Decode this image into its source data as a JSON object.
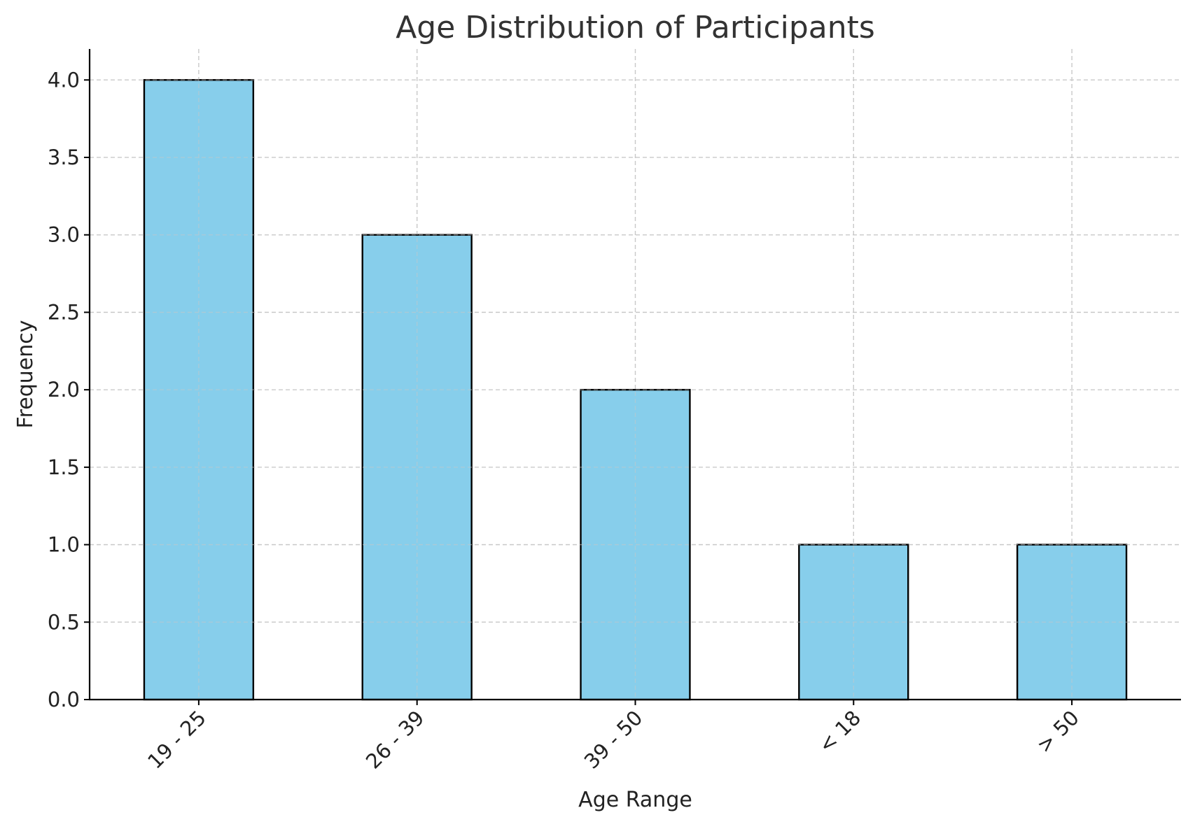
{
  "chart_data": {
    "type": "bar",
    "title": "Age Distribution of Participants",
    "xlabel": "Age Range",
    "ylabel": "Frequency",
    "categories": [
      "19 - 25",
      "26 - 39",
      "39 - 50",
      "< 18",
      "> 50"
    ],
    "values": [
      4,
      3,
      2,
      1,
      1
    ],
    "ylim": [
      0,
      4.2
    ],
    "yticks": [
      0.0,
      0.5,
      1.0,
      1.5,
      2.0,
      2.5,
      3.0,
      3.5,
      4.0
    ],
    "ytick_labels": [
      "0.0",
      "0.5",
      "1.0",
      "1.5",
      "2.0",
      "2.5",
      "3.0",
      "3.5",
      "4.0"
    ],
    "grid": true,
    "bar_color": "#87ceeb",
    "edge_color": "#000000"
  }
}
